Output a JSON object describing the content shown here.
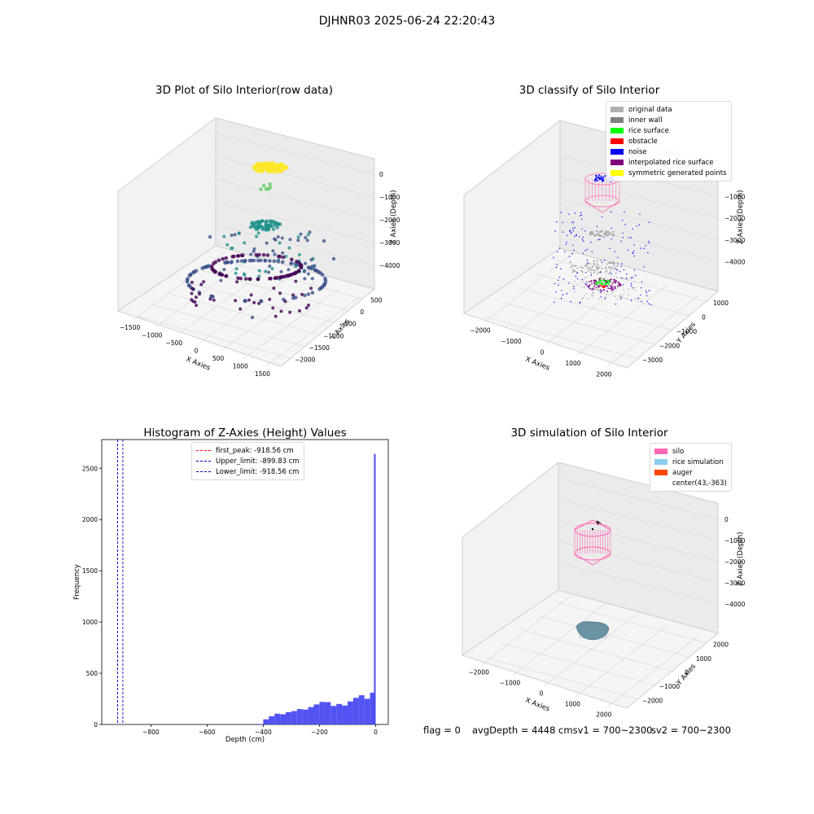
{
  "suptitle": "DJHNR03 2025-06-24 22:20:43",
  "colors": {
    "viridis": [
      "#440154",
      "#3b528b",
      "#21918c",
      "#5ec962",
      "#fde725"
    ],
    "hist_bar": "#4a4af2",
    "first_peak_line": "#ff0000",
    "limit_line": "#0000cc",
    "silo": "#ff69b4",
    "rice": "#5f8a9c",
    "noise": "#0000ff",
    "gray": "#a9a9a9"
  },
  "plots": {
    "raw": {
      "title": "3D Plot of Silo Interior(row data)",
      "xlabel": "X Axies",
      "ylabel": "Y Axies",
      "zlabel": "Z Axies (Depth)",
      "xticks": [
        "−1500",
        "−1000",
        "−500",
        "0",
        "500",
        "1000",
        "1500"
      ],
      "yticks": [
        "500",
        "0",
        "−500",
        "−1000",
        "−1500",
        "−2000"
      ],
      "zticks": [
        "0",
        "−1000",
        "−2000",
        "−3000",
        "−4000"
      ]
    },
    "classify": {
      "title": "3D classify of Silo Interior",
      "xlabel": "X Axies",
      "ylabel": "Y Axies",
      "zlabel": "Z Axies (Depth)",
      "xticks": [
        "−2000",
        "−1000",
        "0",
        "1000",
        "2000"
      ],
      "yticks": [
        "1000",
        "0",
        "−1000",
        "−2000",
        "−3000"
      ],
      "zticks": [
        "−1000",
        "−2000",
        "−3000",
        "−4000"
      ],
      "legend": [
        {
          "label": "original data",
          "color": "#b0b0b0"
        },
        {
          "label": "inner wall",
          "color": "#808080"
        },
        {
          "label": "rice surface",
          "color": "#00ff00"
        },
        {
          "label": "obstacle",
          "color": "#ff0000"
        },
        {
          "label": "noise",
          "color": "#0000ff"
        },
        {
          "label": "interpolated rice surface",
          "color": "#800080"
        },
        {
          "label": "symmetric generated points",
          "color": "#ffff00"
        }
      ]
    },
    "simulation": {
      "title": "3D simulation of Silo Interior",
      "xlabel": "X Axies",
      "ylabel": "Y Axies",
      "zlabel": "Z Axies (Depth)",
      "xticks": [
        "−2000",
        "−1000",
        "0",
        "1000",
        "2000"
      ],
      "yticks": [
        "2000",
        "1000",
        "0",
        "−1000",
        "−2000"
      ],
      "zticks": [
        "0",
        "−1000",
        "−2000",
        "−3000",
        "−4000"
      ],
      "legend": [
        {
          "label": "silo",
          "color": "#ff69b4"
        },
        {
          "label": "rice simulation",
          "color": "#87ceeb"
        },
        {
          "label": "auger",
          "color": "#ff4500"
        },
        {
          "label": "center(43,-363)",
          "color": ""
        }
      ]
    }
  },
  "chart_data": {
    "type": "bar",
    "title": "Histogram of Z-Axies (Height) Values",
    "xlabel": "Depth (cm)",
    "ylabel": "Frequency",
    "xlim": [
      -975,
      45
    ],
    "ylim": [
      0,
      2780
    ],
    "xticks": [
      -800,
      -600,
      -400,
      -200,
      0
    ],
    "xtick_labels": [
      "−800",
      "−600",
      "−400",
      "−200",
      "0"
    ],
    "yticks": [
      0,
      500,
      1000,
      1500,
      2000,
      2500
    ],
    "bin_width": 20,
    "bins": [
      {
        "x0": -420,
        "count": 5
      },
      {
        "x0": -400,
        "count": 50
      },
      {
        "x0": -380,
        "count": 80
      },
      {
        "x0": -360,
        "count": 105
      },
      {
        "x0": -340,
        "count": 100
      },
      {
        "x0": -320,
        "count": 120
      },
      {
        "x0": -300,
        "count": 130
      },
      {
        "x0": -280,
        "count": 150
      },
      {
        "x0": -260,
        "count": 145
      },
      {
        "x0": -240,
        "count": 170
      },
      {
        "x0": -220,
        "count": 195
      },
      {
        "x0": -200,
        "count": 220
      },
      {
        "x0": -180,
        "count": 218
      },
      {
        "x0": -160,
        "count": 180
      },
      {
        "x0": -140,
        "count": 200
      },
      {
        "x0": -120,
        "count": 185
      },
      {
        "x0": -100,
        "count": 225
      },
      {
        "x0": -80,
        "count": 260
      },
      {
        "x0": -60,
        "count": 285
      },
      {
        "x0": -40,
        "count": 250
      },
      {
        "x0": -20,
        "count": 310
      },
      {
        "x0": -6,
        "count": 2640
      }
    ],
    "vlines": [
      {
        "x": -918.56,
        "label": "first_peak: -918.56 cm",
        "style": "red"
      },
      {
        "x": -899.83,
        "label": "Upper_limit: -899.83 cm",
        "style": "blue"
      },
      {
        "x": -918.56,
        "label": "Lower_limit: -918.56 cm",
        "style": "blue"
      }
    ]
  },
  "footer": {
    "flag": "flag = 0",
    "avg": "avgDepth = 4448 cmsv1 = 700~2300",
    "sv2": "sv2 = 700~2300"
  }
}
